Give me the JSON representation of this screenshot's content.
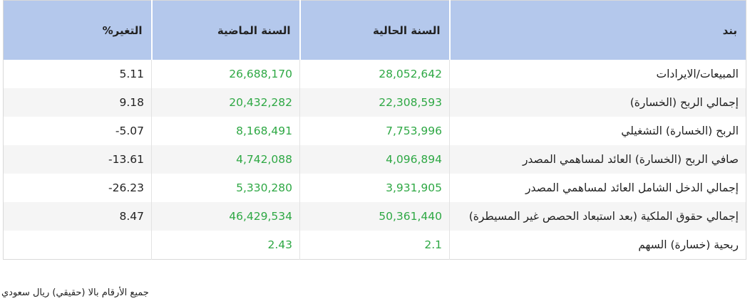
{
  "table": {
    "header": [
      "بند",
      "السنة الحالية",
      "السنة الماضية",
      "التغير%"
    ],
    "rows": [
      [
        "المبيعات/الايرادات",
        "28,052,642",
        "26,688,170",
        "5.11"
      ],
      [
        "إجمالي الربح (الخسارة)",
        "22,308,593",
        "20,432,282",
        "9.18"
      ],
      [
        "الربح (الخسارة) التشغيلي",
        "7,753,996",
        "8,168,491",
        "5.07-"
      ],
      [
        "صافي الربح (الخسارة) العائد لمساهمي المصدر",
        "4,096,894",
        "4,742,088",
        "13.61-"
      ],
      [
        "إجمالي الدخل الشامل العائد لمساهمي المصدر",
        "3,931,905",
        "5,330,280",
        "26.23-"
      ],
      [
        "إجمالي حقوق الملكية (بعد استبعاد الحصص غير المسيطرة)",
        "50,361,440",
        "46,429,534",
        "8.47"
      ],
      [
        "ربحية (خسارة) السهم",
        "2.1",
        "2.43",
        null
      ]
    ]
  },
  "footnote": "جميع الأرقام بالا (حقيقي) ريال سعودي"
}
